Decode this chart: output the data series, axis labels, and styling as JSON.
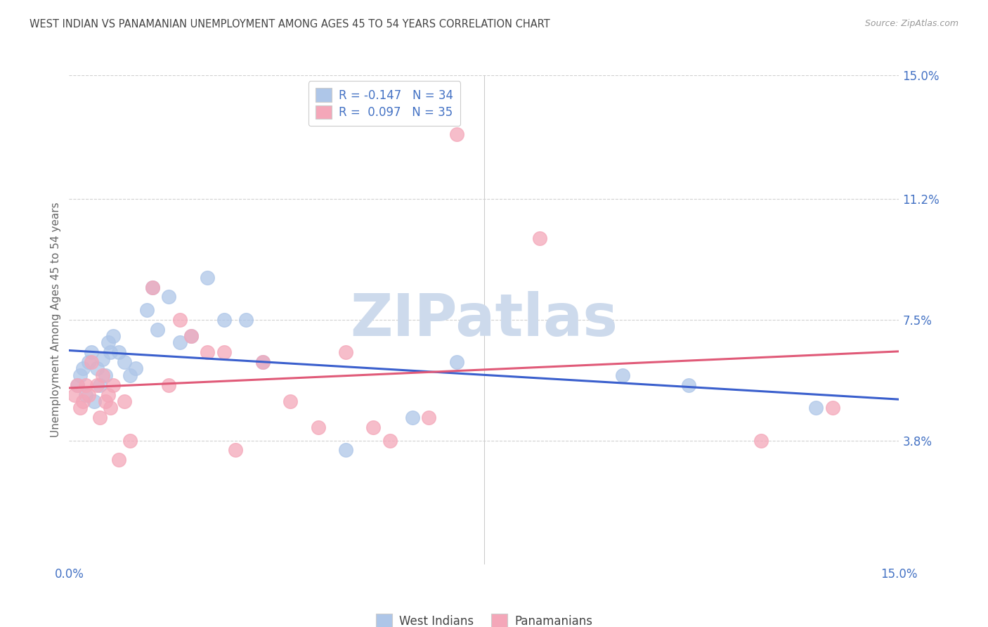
{
  "title": "WEST INDIAN VS PANAMANIAN UNEMPLOYMENT AMONG AGES 45 TO 54 YEARS CORRELATION CHART",
  "source": "Source: ZipAtlas.com",
  "ylabel": "Unemployment Among Ages 45 to 54 years",
  "xlim": [
    0,
    15
  ],
  "ylim": [
    0,
    15
  ],
  "ytick_positions": [
    3.8,
    7.5,
    11.2,
    15.0
  ],
  "west_indians_R": -0.147,
  "west_indians_N": 34,
  "panamanians_R": 0.097,
  "panamanians_N": 35,
  "west_indian_color": "#aec6e8",
  "panamanian_color": "#f4a7b9",
  "west_indian_line_color": "#3a5fcd",
  "panamanian_line_color": "#e05a78",
  "watermark_text": "ZIPatlas",
  "watermark_color": "#cddaec",
  "background_color": "#ffffff",
  "grid_color": "#cccccc",
  "title_color": "#444444",
  "axis_tick_color": "#4472C4",
  "legend_text_color": "#4472C4",
  "west_indians_x": [
    0.15,
    0.2,
    0.25,
    0.3,
    0.35,
    0.4,
    0.45,
    0.5,
    0.55,
    0.6,
    0.65,
    0.7,
    0.75,
    0.8,
    0.9,
    1.0,
    1.1,
    1.2,
    1.4,
    1.5,
    1.6,
    1.8,
    2.0,
    2.2,
    2.5,
    2.8,
    3.2,
    3.5,
    5.0,
    6.2,
    7.0,
    10.0,
    11.2,
    13.5
  ],
  "west_indians_y": [
    5.5,
    5.8,
    6.0,
    5.2,
    6.2,
    6.5,
    5.0,
    6.0,
    5.5,
    6.3,
    5.8,
    6.8,
    6.5,
    7.0,
    6.5,
    6.2,
    5.8,
    6.0,
    7.8,
    8.5,
    7.2,
    8.2,
    6.8,
    7.0,
    8.8,
    7.5,
    7.5,
    6.2,
    3.5,
    4.5,
    6.2,
    5.8,
    5.5,
    4.8
  ],
  "panamanians_x": [
    0.1,
    0.15,
    0.2,
    0.25,
    0.3,
    0.35,
    0.4,
    0.5,
    0.55,
    0.6,
    0.65,
    0.7,
    0.75,
    0.8,
    0.9,
    1.0,
    1.1,
    1.5,
    1.8,
    2.0,
    2.2,
    2.5,
    2.8,
    3.0,
    3.5,
    4.0,
    4.5,
    5.0,
    5.5,
    5.8,
    6.5,
    7.0,
    8.5,
    12.5,
    13.8
  ],
  "panamanians_y": [
    5.2,
    5.5,
    4.8,
    5.0,
    5.5,
    5.2,
    6.2,
    5.5,
    4.5,
    5.8,
    5.0,
    5.2,
    4.8,
    5.5,
    3.2,
    5.0,
    3.8,
    8.5,
    5.5,
    7.5,
    7.0,
    6.5,
    6.5,
    3.5,
    6.2,
    5.0,
    4.2,
    6.5,
    4.2,
    3.8,
    4.5,
    13.2,
    10.0,
    3.8,
    4.8
  ]
}
